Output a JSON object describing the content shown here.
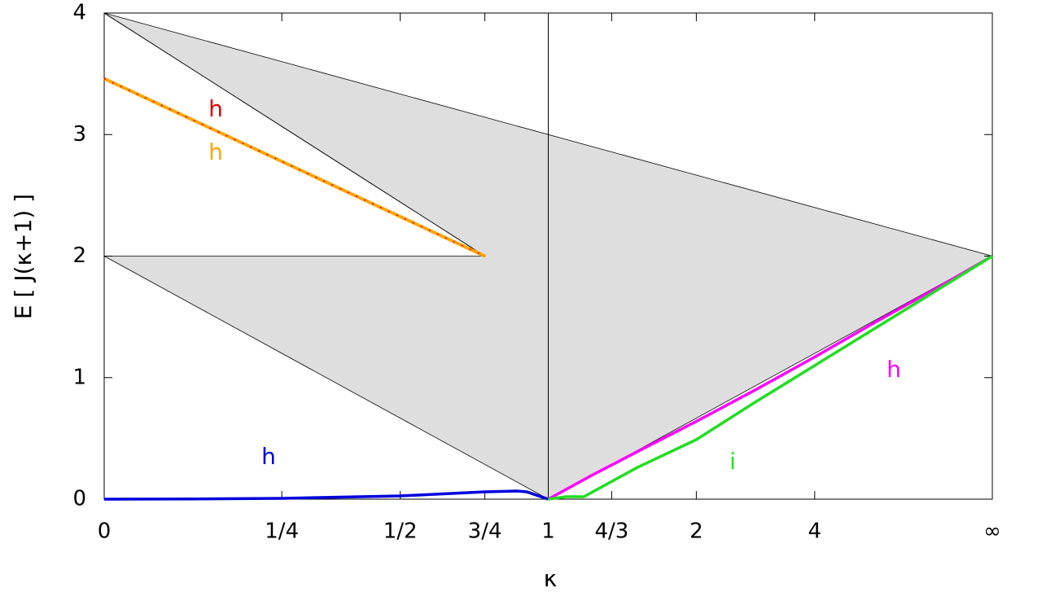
{
  "chart_data": {
    "type": "line",
    "xlabel": "κ",
    "ylabel": "E [ J(κ+1) ]",
    "xlim": [
      0,
      1
    ],
    "ylim": [
      0,
      4
    ],
    "xticks": [
      0,
      {
        "value": 0.2,
        "label": "1/4"
      },
      {
        "value": 0.3333,
        "label": "1/2"
      },
      {
        "value": 0.4286,
        "label": "3/4"
      },
      {
        "value": 0.5,
        "label": "1"
      },
      {
        "value": 0.5714,
        "label": "4/3"
      },
      {
        "value": 0.6667,
        "label": "2"
      },
      {
        "value": 0.8,
        "label": "4"
      },
      {
        "value": 1,
        "label": "∞"
      }
    ],
    "yticks": [
      0,
      1,
      2,
      3,
      4
    ],
    "vlines": [
      0.5
    ],
    "region": {
      "color": "#dedede",
      "x": [
        0,
        1,
        0.5,
        0,
        0.4286
      ],
      "values": [
        4,
        2,
        0,
        2,
        2
      ]
    },
    "series": [
      {
        "name": "h",
        "color": "#ffa500",
        "x": [
          0,
          0.4286
        ],
        "values": [
          3.46,
          2
        ]
      },
      {
        "name": "h",
        "color": "#e00000",
        "x": [
          0,
          0.4286
        ],
        "values": [
          3.46,
          2
        ]
      },
      {
        "name": "h",
        "color": "#0000dd",
        "x": [
          0,
          0.1,
          0.2,
          0.3333,
          0.4286,
          0.465,
          0.476,
          0.5
        ],
        "values": [
          0,
          0.002,
          0.007,
          0.027,
          0.06,
          0.067,
          0.06,
          0
        ]
      },
      {
        "name": "h",
        "color": "#ff00ff",
        "x": [
          0.5,
          0.55,
          0.6,
          0.6667,
          0.7333,
          0.8,
          0.8667,
          0.9333,
          1
        ],
        "values": [
          0,
          0.2,
          0.39,
          0.64,
          0.9,
          1.17,
          1.45,
          1.72,
          2
        ]
      },
      {
        "name": "i",
        "color": "#22dd22",
        "x": [
          0.5,
          0.52,
          0.54,
          0.56,
          0.6,
          0.6667,
          0.7333,
          0.8,
          0.8667,
          0.9333,
          1
        ],
        "values": [
          0,
          0.02,
          0.02,
          0.1,
          0.26,
          0.49,
          0.8,
          1.1,
          1.4,
          1.7,
          2
        ]
      }
    ]
  }
}
